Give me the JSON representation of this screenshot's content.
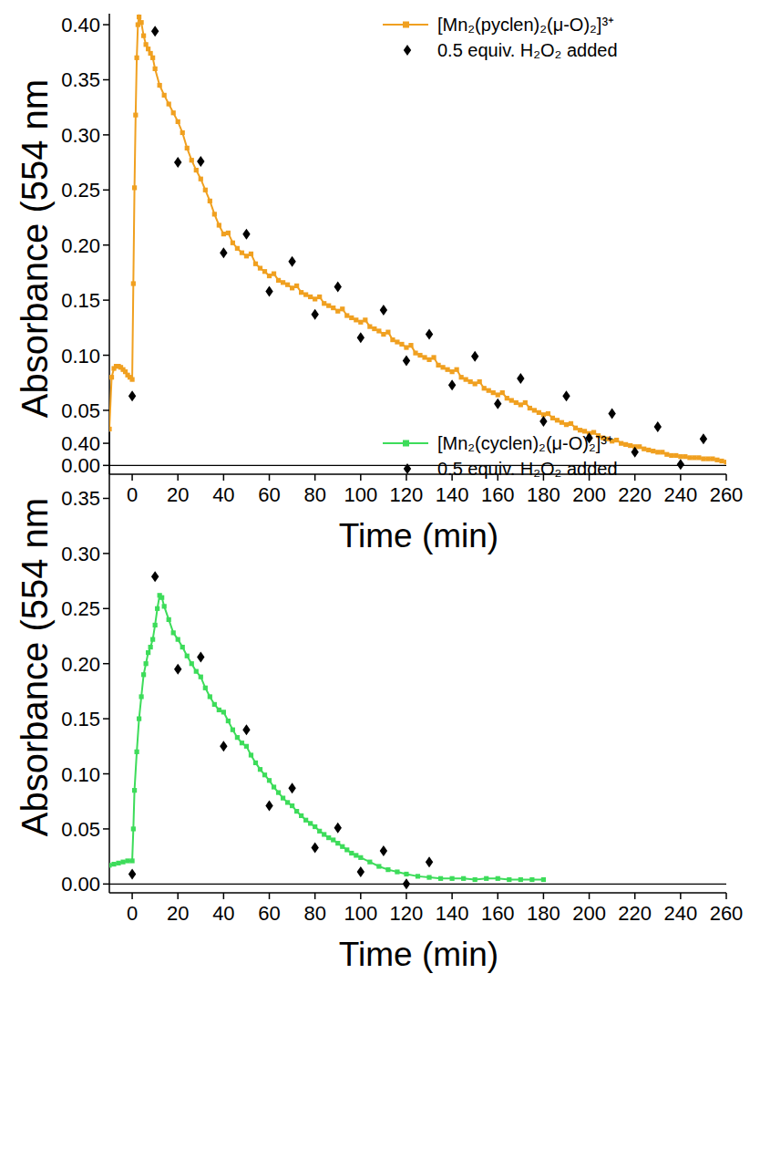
{
  "chart_data": [
    {
      "type": "line",
      "xlabel": "Time (min)",
      "ylabel": "Absorbance (554 nm",
      "xlim": [
        -10,
        260
      ],
      "ylim": [
        -0.008,
        0.41
      ],
      "xticks": [
        0,
        20,
        40,
        60,
        80,
        100,
        120,
        140,
        160,
        180,
        200,
        220,
        240,
        260
      ],
      "yticks": [
        {
          "value": 0,
          "label": "0.00"
        },
        {
          "value": 0.05,
          "label": "0.05"
        },
        {
          "value": 0.1,
          "label": "0.10"
        },
        {
          "value": 0.15,
          "label": "0.15"
        },
        {
          "value": 0.2,
          "label": "0.20"
        },
        {
          "value": 0.25,
          "label": "0.25"
        },
        {
          "value": 0.3,
          "label": "0.30"
        },
        {
          "value": 0.35,
          "label": "0.35"
        },
        {
          "value": 0.4,
          "label": "0.40"
        }
      ],
      "reference_line": 0,
      "legend": "upper right",
      "series": [
        {
          "name": "[Mn₂(pyclen)₂(μ-O)₂]³⁺",
          "color": "#f0a020",
          "marker": "square",
          "line_style": "solid",
          "x": [
            -10,
            -9,
            -8,
            -7,
            -6,
            -5,
            -4,
            -3,
            -2,
            -1,
            0,
            0.5,
            1,
            1.5,
            2,
            2.5,
            3,
            4,
            5,
            6,
            7,
            8,
            9,
            10,
            12,
            14,
            16,
            18,
            20,
            22,
            24,
            26,
            28,
            30,
            32,
            34,
            36,
            38,
            40,
            42,
            44,
            46,
            48,
            50,
            52,
            54,
            56,
            58,
            60,
            62,
            64,
            66,
            68,
            70,
            72,
            74,
            76,
            78,
            80,
            82,
            84,
            86,
            88,
            90,
            92,
            94,
            96,
            98,
            100,
            102,
            104,
            106,
            108,
            110,
            112,
            114,
            116,
            118,
            120,
            122,
            124,
            126,
            128,
            130,
            132,
            134,
            136,
            138,
            140,
            142,
            144,
            146,
            148,
            150,
            152,
            154,
            156,
            158,
            160,
            162,
            164,
            166,
            168,
            170,
            172,
            174,
            176,
            178,
            180,
            182,
            184,
            186,
            188,
            190,
            192,
            194,
            196,
            198,
            200,
            202,
            204,
            206,
            208,
            210,
            212,
            214,
            216,
            218,
            220,
            222,
            224,
            226,
            228,
            230,
            232,
            234,
            236,
            238,
            240,
            242,
            244,
            246,
            248,
            250,
            252,
            254,
            256,
            258,
            260
          ],
          "values": [
            0.033,
            0.08,
            0.088,
            0.09,
            0.09,
            0.089,
            0.087,
            0.085,
            0.082,
            0.08,
            0.078,
            0.165,
            0.252,
            0.318,
            0.37,
            0.4,
            0.407,
            0.402,
            0.39,
            0.382,
            0.378,
            0.374,
            0.37,
            0.36,
            0.345,
            0.336,
            0.328,
            0.32,
            0.312,
            0.302,
            0.288,
            0.277,
            0.268,
            0.26,
            0.25,
            0.24,
            0.228,
            0.218,
            0.21,
            0.211,
            0.202,
            0.197,
            0.193,
            0.19,
            0.192,
            0.183,
            0.179,
            0.176,
            0.172,
            0.174,
            0.168,
            0.166,
            0.164,
            0.161,
            0.163,
            0.157,
            0.155,
            0.153,
            0.151,
            0.153,
            0.147,
            0.145,
            0.143,
            0.14,
            0.142,
            0.136,
            0.134,
            0.132,
            0.13,
            0.132,
            0.126,
            0.124,
            0.122,
            0.119,
            0.121,
            0.114,
            0.112,
            0.11,
            0.107,
            0.109,
            0.102,
            0.1,
            0.098,
            0.096,
            0.098,
            0.091,
            0.089,
            0.087,
            0.085,
            0.087,
            0.08,
            0.078,
            0.076,
            0.074,
            0.076,
            0.07,
            0.068,
            0.066,
            0.064,
            0.066,
            0.061,
            0.059,
            0.057,
            0.055,
            0.057,
            0.052,
            0.05,
            0.048,
            0.046,
            0.047,
            0.043,
            0.041,
            0.039,
            0.037,
            0.038,
            0.034,
            0.032,
            0.031,
            0.029,
            0.03,
            0.027,
            0.025,
            0.024,
            0.022,
            0.023,
            0.02,
            0.019,
            0.018,
            0.017,
            0.017,
            0.015,
            0.014,
            0.013,
            0.012,
            0.012,
            0.01,
            0.009,
            0.009,
            0.008,
            0.008,
            0.007,
            0.007,
            0.007,
            0.006,
            0.006,
            0.006,
            0.005,
            0.004,
            0.003
          ]
        },
        {
          "name": "0.5 equiv. H₂O₂ added",
          "type": "scatter",
          "color": "#000000",
          "marker": "diamond",
          "x": [
            0,
            10,
            20,
            30,
            40,
            50,
            60,
            70,
            80,
            90,
            100,
            110,
            120,
            130,
            140,
            150,
            160,
            170,
            180,
            190,
            200,
            210,
            220,
            230,
            240,
            250
          ],
          "values": [
            0.063,
            0.394,
            0.275,
            0.276,
            0.193,
            0.21,
            0.158,
            0.185,
            0.137,
            0.162,
            0.116,
            0.141,
            0.095,
            0.119,
            0.073,
            0.099,
            0.056,
            0.079,
            0.04,
            0.063,
            0.025,
            0.047,
            0.012,
            0.035,
            0.001,
            0.024
          ]
        }
      ]
    },
    {
      "type": "line",
      "xlabel": "Time (min)",
      "ylabel": "Absorbance (554 nm",
      "xlim": [
        -10,
        260
      ],
      "ylim": [
        -0.008,
        0.41
      ],
      "xticks": [
        0,
        20,
        40,
        60,
        80,
        100,
        120,
        140,
        160,
        180,
        200,
        220,
        240,
        260
      ],
      "yticks": [
        {
          "value": 0,
          "label": "0.00"
        },
        {
          "value": 0.05,
          "label": "0.05"
        },
        {
          "value": 0.1,
          "label": "0.10"
        },
        {
          "value": 0.15,
          "label": "0.15"
        },
        {
          "value": 0.2,
          "label": "0.20"
        },
        {
          "value": 0.25,
          "label": "0.25"
        },
        {
          "value": 0.3,
          "label": "0.30"
        },
        {
          "value": 0.35,
          "label": "0.35"
        },
        {
          "value": 0.4,
          "label": "0.40"
        }
      ],
      "reference_line": 0,
      "legend": "upper right",
      "series": [
        {
          "name": "[Mn₂(cyclen)₂(μ-O)₂]³⁺",
          "color": "#3ddc5a",
          "marker": "square",
          "line_style": "solid",
          "x": [
            -10,
            -8,
            -6,
            -4,
            -2,
            0,
            0.5,
            1,
            2,
            3,
            4,
            5,
            6,
            7,
            8,
            9,
            10,
            11,
            12,
            13,
            14,
            16,
            18,
            20,
            22,
            24,
            26,
            28,
            30,
            32,
            34,
            36,
            38,
            40,
            42,
            44,
            46,
            48,
            50,
            52,
            54,
            56,
            58,
            60,
            62,
            64,
            66,
            68,
            70,
            72,
            74,
            76,
            78,
            80,
            82,
            84,
            86,
            88,
            90,
            92,
            94,
            96,
            98,
            100,
            104,
            108,
            112,
            116,
            120,
            125,
            130,
            135,
            140,
            145,
            150,
            155,
            160,
            165,
            170,
            175,
            180
          ],
          "values": [
            0.017,
            0.018,
            0.019,
            0.02,
            0.021,
            0.021,
            0.05,
            0.085,
            0.12,
            0.15,
            0.17,
            0.19,
            0.2,
            0.21,
            0.215,
            0.222,
            0.235,
            0.25,
            0.262,
            0.26,
            0.252,
            0.24,
            0.228,
            0.222,
            0.215,
            0.207,
            0.2,
            0.193,
            0.188,
            0.178,
            0.17,
            0.163,
            0.158,
            0.156,
            0.148,
            0.14,
            0.133,
            0.128,
            0.125,
            0.117,
            0.11,
            0.104,
            0.099,
            0.094,
            0.088,
            0.083,
            0.078,
            0.074,
            0.071,
            0.066,
            0.062,
            0.058,
            0.055,
            0.052,
            0.048,
            0.045,
            0.042,
            0.04,
            0.037,
            0.034,
            0.031,
            0.028,
            0.026,
            0.024,
            0.02,
            0.016,
            0.013,
            0.011,
            0.009,
            0.007,
            0.006,
            0.005,
            0.005,
            0.005,
            0.004,
            0.005,
            0.005,
            0.004,
            0.004,
            0.004,
            0.004
          ]
        },
        {
          "name": "0.5 equiv. H₂O₂ added",
          "type": "scatter",
          "color": "#000000",
          "marker": "diamond",
          "x": [
            0,
            10,
            20,
            30,
            40,
            50,
            60,
            70,
            80,
            90,
            100,
            110,
            120,
            130
          ],
          "values": [
            0.009,
            0.279,
            0.195,
            0.206,
            0.125,
            0.14,
            0.071,
            0.087,
            0.033,
            0.051,
            0.011,
            0.03,
            0,
            0.02
          ]
        }
      ]
    }
  ]
}
